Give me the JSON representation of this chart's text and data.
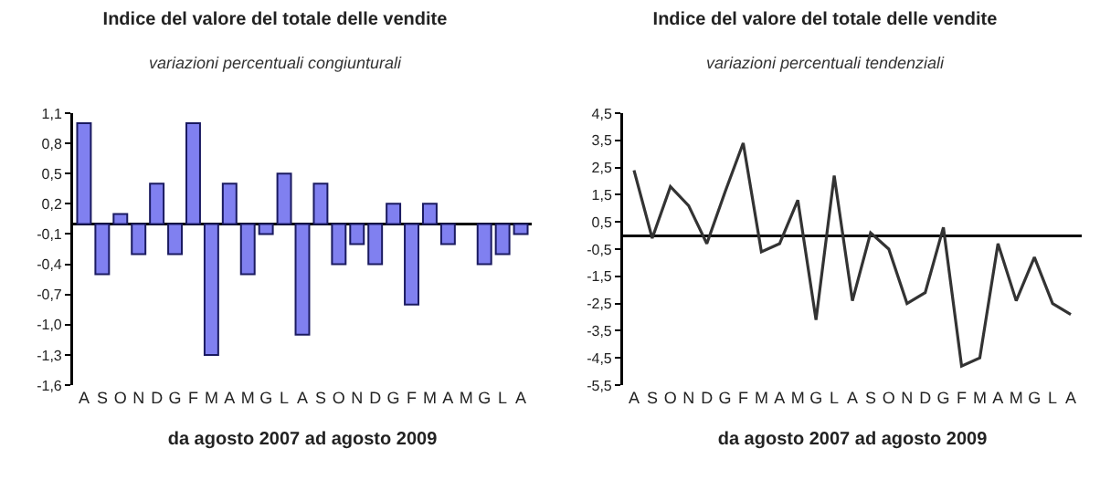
{
  "chart_data": [
    {
      "type": "bar",
      "title": "Indice del valore del totale delle vendite",
      "subtitle": "variazioni percentuali congiunturali",
      "xlabel": "da agosto 2007 ad agosto 2009",
      "categories": [
        "A",
        "S",
        "O",
        "N",
        "D",
        "G",
        "F",
        "M",
        "A",
        "M",
        "G",
        "L",
        "A",
        "S",
        "O",
        "N",
        "D",
        "G",
        "F",
        "M",
        "A",
        "M",
        "G",
        "L",
        "A"
      ],
      "values": [
        1.0,
        -0.5,
        0.1,
        -0.3,
        0.4,
        -0.3,
        1.0,
        -1.3,
        0.4,
        -0.5,
        -0.1,
        0.5,
        -1.1,
        0.4,
        -0.4,
        -0.2,
        -0.4,
        0.2,
        -0.8,
        0.2,
        -0.2,
        null,
        -0.4,
        -0.3,
        -0.1
      ],
      "color": "#8080f0",
      "ylim": [
        -1.6,
        1.1
      ],
      "yticks": [
        {
          "value": 1.1,
          "label": "1,1"
        },
        {
          "value": 0.8,
          "label": "0,8"
        },
        {
          "value": 0.5,
          "label": "0,5"
        },
        {
          "value": 0.2,
          "label": "0,2"
        },
        {
          "value": -0.1,
          "label": "-0,1"
        },
        {
          "value": -0.4,
          "label": "-0,4"
        },
        {
          "value": -0.7,
          "label": "-0,7"
        },
        {
          "value": -1.0,
          "label": "-1,0"
        },
        {
          "value": -1.3,
          "label": "-1,3"
        },
        {
          "value": -1.6,
          "label": "-1,6"
        }
      ]
    },
    {
      "type": "line",
      "title": "Indice del valore del totale delle vendite",
      "subtitle": "variazioni percentuali tendenziali",
      "xlabel": "da agosto 2007 ad agosto 2009",
      "categories": [
        "A",
        "S",
        "O",
        "N",
        "D",
        "G",
        "F",
        "M",
        "A",
        "M",
        "G",
        "L",
        "A",
        "S",
        "O",
        "N",
        "D",
        "G",
        "F",
        "M",
        "A",
        "M",
        "G",
        "L",
        "A"
      ],
      "values": [
        2.4,
        -0.1,
        1.8,
        1.1,
        -0.3,
        1.6,
        3.4,
        -0.6,
        -0.3,
        1.3,
        -3.1,
        2.2,
        -2.4,
        0.1,
        -0.5,
        -2.5,
        -2.1,
        0.3,
        -4.8,
        -4.5,
        -0.3,
        -2.4,
        -0.8,
        -2.5,
        -2.9
      ],
      "color": "#333333",
      "ylim": [
        -5.5,
        4.5
      ],
      "yticks": [
        {
          "value": 4.5,
          "label": "4,5"
        },
        {
          "value": 3.5,
          "label": "3,5"
        },
        {
          "value": 2.5,
          "label": "2,5"
        },
        {
          "value": 1.5,
          "label": "1,5"
        },
        {
          "value": 0.5,
          "label": "0,5"
        },
        {
          "value": -0.5,
          "label": "-0,5"
        },
        {
          "value": -1.5,
          "label": "-1,5"
        },
        {
          "value": -2.5,
          "label": "-2,5"
        },
        {
          "value": -3.5,
          "label": "-3,5"
        },
        {
          "value": -4.5,
          "label": "-4,5"
        },
        {
          "value": -5.5,
          "label": "-5,5"
        }
      ],
      "marker": "none"
    }
  ]
}
